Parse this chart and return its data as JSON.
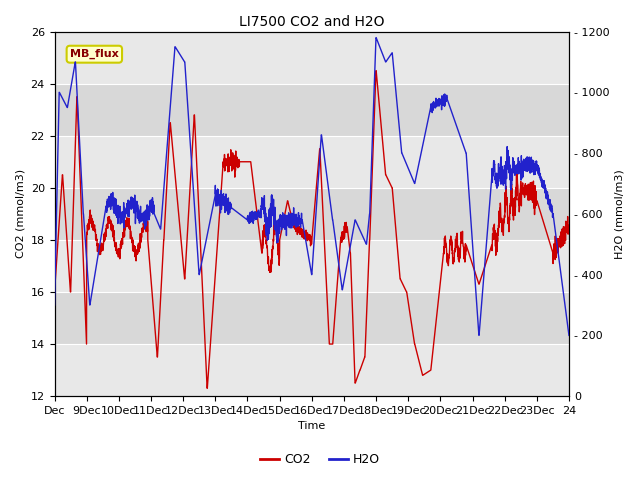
{
  "title": "LI7500 CO2 and H2O",
  "xlabel": "Time",
  "ylabel_left": "CO2 (mmol/m3)",
  "ylabel_right": "H2O (mmol/m3)",
  "xlim": [
    0,
    16
  ],
  "ylim_left": [
    12,
    26
  ],
  "ylim_right": [
    0,
    1200
  ],
  "co2_color": "#cc0000",
  "h2o_color": "#2222cc",
  "linewidth": 1.0,
  "background_color": "#ffffff",
  "plot_bg_color": "#d8d8d8",
  "band_color_light": "#e8e8e8",
  "annotation_text": "MB_flux",
  "annotation_bg": "#ffffcc",
  "annotation_border": "#cccc00",
  "annotation_text_color": "#880000",
  "xtick_labels": [
    "Dec",
    "9Dec",
    "10Dec",
    "11Dec",
    "12Dec",
    "13Dec",
    "14Dec",
    "15Dec",
    "16Dec",
    "17Dec",
    "18Dec",
    "19Dec",
    "20Dec",
    "21Dec",
    "22Dec",
    "23Dec",
    "24"
  ],
  "yticks_left": [
    12,
    14,
    16,
    18,
    20,
    22,
    24,
    26
  ],
  "yticks_right": [
    0,
    200,
    400,
    600,
    800,
    1000,
    1200
  ],
  "title_fontsize": 10,
  "axis_fontsize": 8,
  "tick_fontsize": 8,
  "legend_fontsize": 9
}
